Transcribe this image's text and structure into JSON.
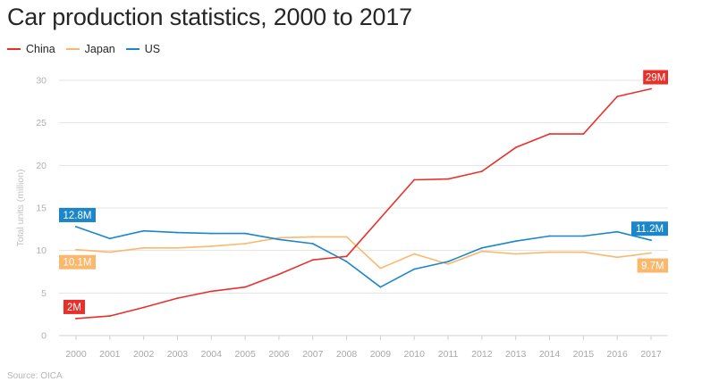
{
  "title": "Car production statistics, 2000 to 2017",
  "source": "Source: OICA",
  "colors": {
    "China": "#e8302b",
    "Japan": "#f9b86d",
    "US": "#1b86c9"
  },
  "chart_data": {
    "type": "line",
    "title": "Car production statistics, 2000 to 2017",
    "xlabel": "",
    "ylabel": "Total units (million)",
    "ylim": [
      0,
      30
    ],
    "yticks": [
      0,
      5,
      10,
      15,
      20,
      25,
      30
    ],
    "x": [
      "2000",
      "2001",
      "2002",
      "2003",
      "2004",
      "2005",
      "2006",
      "2007",
      "2008",
      "2009",
      "2010",
      "2011",
      "2012",
      "2013",
      "2014",
      "2015",
      "2016",
      "2017"
    ],
    "grid": true,
    "legend": "top-left",
    "series": [
      {
        "name": "China",
        "values": [
          2.0,
          2.3,
          3.3,
          4.4,
          5.2,
          5.7,
          7.2,
          8.9,
          9.3,
          13.8,
          18.3,
          18.4,
          19.3,
          22.1,
          23.7,
          23.7,
          28.1,
          29.0
        ],
        "annotations": [
          {
            "index": 0,
            "text": "2M",
            "pos": "above"
          },
          {
            "index": 17,
            "text": "29M",
            "pos": "above"
          }
        ]
      },
      {
        "name": "Japan",
        "values": [
          10.1,
          9.8,
          10.3,
          10.3,
          10.5,
          10.8,
          11.5,
          11.6,
          11.6,
          7.9,
          9.6,
          8.4,
          9.9,
          9.6,
          9.8,
          9.8,
          9.2,
          9.7
        ],
        "annotations": [
          {
            "index": 0,
            "text": "10.1M",
            "pos": "below"
          },
          {
            "index": 17,
            "text": "9.7M",
            "pos": "below"
          }
        ]
      },
      {
        "name": "US",
        "values": [
          12.8,
          11.4,
          12.3,
          12.1,
          12.0,
          12.0,
          11.3,
          10.8,
          8.7,
          5.7,
          7.8,
          8.7,
          10.3,
          11.1,
          11.7,
          11.7,
          12.2,
          11.2
        ],
        "annotations": [
          {
            "index": 0,
            "text": "12.8M",
            "pos": "above"
          },
          {
            "index": 17,
            "text": "11.2M",
            "pos": "above"
          }
        ]
      }
    ]
  }
}
